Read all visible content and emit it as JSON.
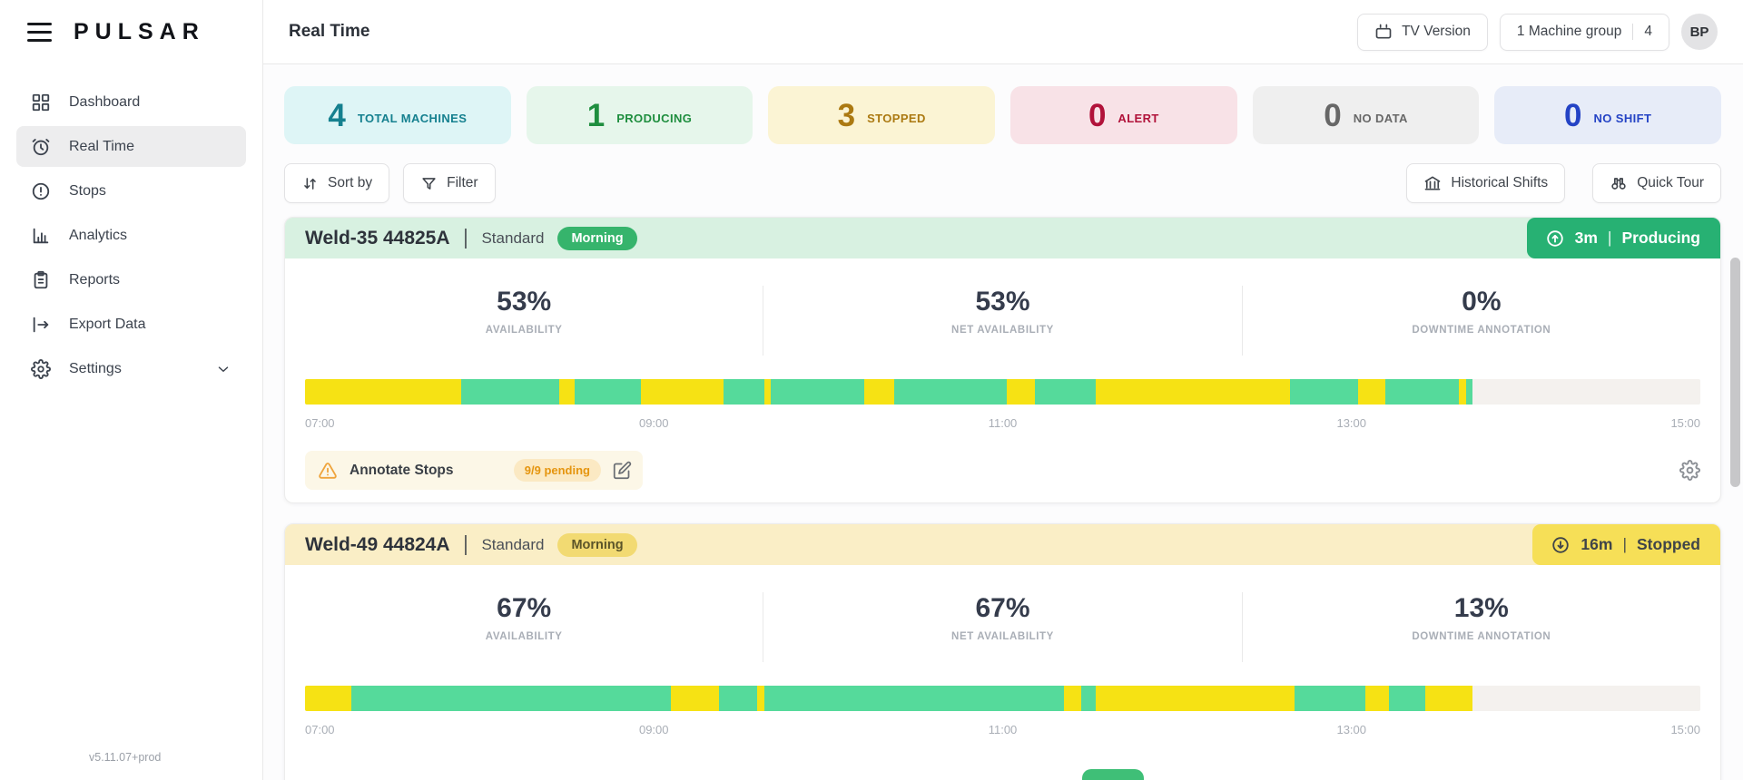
{
  "app": {
    "brand": "PULSAR",
    "version": "v5.11.07+prod"
  },
  "ui": {
    "separator": "|"
  },
  "header": {
    "title": "Real Time",
    "tv_button": "TV Version",
    "machine_group_label": "1 Machine group",
    "machine_group_value": "4",
    "avatar_initials": "BP"
  },
  "sidebar": {
    "items": [
      {
        "label": "Dashboard"
      },
      {
        "label": "Real Time"
      },
      {
        "label": "Stops"
      },
      {
        "label": "Analytics"
      },
      {
        "label": "Reports"
      },
      {
        "label": "Export Data"
      },
      {
        "label": "Settings"
      }
    ]
  },
  "summary": {
    "cards": [
      {
        "value": "4",
        "label": "TOTAL MACHINES",
        "fg": "#15808f",
        "bg": "#def5f6"
      },
      {
        "value": "1",
        "label": "PRODUCING",
        "fg": "#1e8e3e",
        "bg": "#e6f6eb"
      },
      {
        "value": "3",
        "label": "STOPPED",
        "fg": "#ab7911",
        "bg": "#fbf4d4"
      },
      {
        "value": "0",
        "label": "ALERT",
        "fg": "#b1123a",
        "bg": "#f8e2e7"
      },
      {
        "value": "0",
        "label": "NO DATA",
        "fg": "#676767",
        "bg": "#efefef"
      },
      {
        "value": "0",
        "label": "NO SHIFT",
        "fg": "#2443c5",
        "bg": "#e7ecf8"
      }
    ]
  },
  "toolbar": {
    "sort_label": "Sort by",
    "filter_label": "Filter",
    "historical_label": "Historical Shifts",
    "quick_tour_label": "Quick Tour"
  },
  "timeline_colors": {
    "producing": "#55da9b",
    "stopped": "#f6e214",
    "empty": "#f4f1ee"
  },
  "machines": [
    {
      "name": "Weld-35 44825A",
      "type": "Standard",
      "shift": "Morning",
      "shift_bg": "#36b46c",
      "shift_fg": "#ffffff",
      "header_bg": "#d8f1e1",
      "badge": {
        "time": "3m",
        "state": "Producing",
        "bg": "#27b173",
        "fg": "#ffffff"
      },
      "stats": [
        {
          "value": "53%",
          "label": "AVAILABILITY"
        },
        {
          "value": "53%",
          "label": "NET AVAILABILITY"
        },
        {
          "value": "0%",
          "label": "DOWNTIME ANNOTATION"
        }
      ],
      "timeline": {
        "labels": [
          "07:00",
          "09:00",
          "11:00",
          "13:00",
          "15:00"
        ],
        "segments": [
          {
            "state": "stopped",
            "w": 11.2
          },
          {
            "state": "producing",
            "w": 7.0
          },
          {
            "state": "stopped",
            "w": 1.1
          },
          {
            "state": "producing",
            "w": 4.8
          },
          {
            "state": "stopped",
            "w": 5.9
          },
          {
            "state": "producing",
            "w": 2.9
          },
          {
            "state": "stopped",
            "w": 0.5
          },
          {
            "state": "producing",
            "w": 6.7
          },
          {
            "state": "stopped",
            "w": 2.1
          },
          {
            "state": "producing",
            "w": 8.1
          },
          {
            "state": "stopped",
            "w": 2.0
          },
          {
            "state": "producing",
            "w": 4.4
          },
          {
            "state": "stopped",
            "w": 13.9
          },
          {
            "state": "producing",
            "w": 4.9
          },
          {
            "state": "stopped",
            "w": 1.9
          },
          {
            "state": "producing",
            "w": 5.3
          },
          {
            "state": "stopped",
            "w": 0.5
          },
          {
            "state": "producing",
            "w": 0.5
          },
          {
            "state": "empty",
            "w": 16.3
          }
        ]
      },
      "annotate": {
        "label": "Annotate Stops",
        "pending": "9/9 pending"
      }
    },
    {
      "name": "Weld-49 44824A",
      "type": "Standard",
      "shift": "Morning",
      "shift_bg": "#f2da72",
      "shift_fg": "#5b5429",
      "header_bg": "#faeec6",
      "badge": {
        "time": "16m",
        "state": "Stopped",
        "bg": "#f6df57",
        "fg": "#3f4449"
      },
      "stats": [
        {
          "value": "67%",
          "label": "AVAILABILITY"
        },
        {
          "value": "67%",
          "label": "NET AVAILABILITY"
        },
        {
          "value": "13%",
          "label": "DOWNTIME ANNOTATION"
        }
      ],
      "timeline": {
        "labels": [
          "07:00",
          "09:00",
          "11:00",
          "13:00",
          "15:00"
        ],
        "segments": [
          {
            "state": "stopped",
            "w": 3.3
          },
          {
            "state": "producing",
            "w": 22.9
          },
          {
            "state": "stopped",
            "w": 3.5
          },
          {
            "state": "producing",
            "w": 2.7
          },
          {
            "state": "stopped",
            "w": 0.5
          },
          {
            "state": "producing",
            "w": 21.5
          },
          {
            "state": "stopped",
            "w": 1.2
          },
          {
            "state": "producing",
            "w": 1.1
          },
          {
            "state": "stopped",
            "w": 14.2
          },
          {
            "state": "producing",
            "w": 5.1
          },
          {
            "state": "stopped",
            "w": 1.7
          },
          {
            "state": "producing",
            "w": 2.6
          },
          {
            "state": "stopped",
            "w": 3.4
          },
          {
            "state": "empty",
            "w": 16.3
          }
        ]
      }
    }
  ]
}
